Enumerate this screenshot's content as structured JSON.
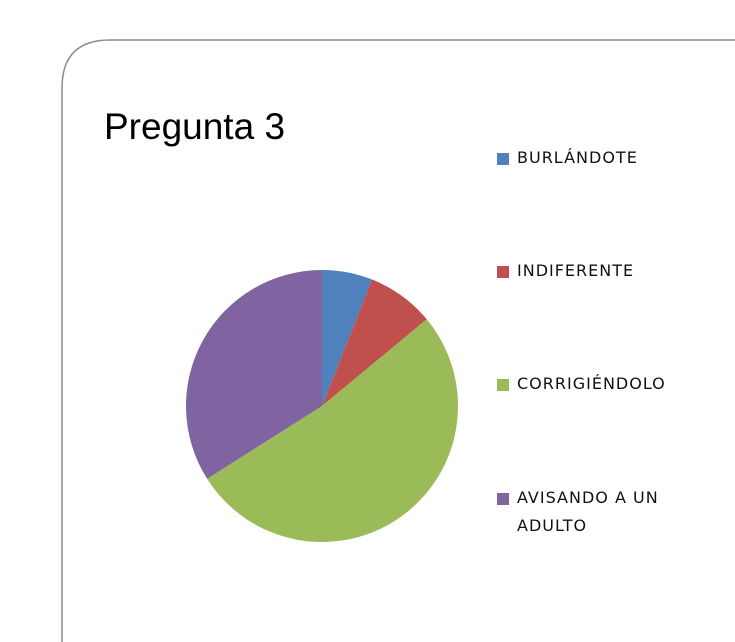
{
  "chart_data": {
    "type": "pie",
    "title": "Pregunta 3",
    "categories": [
      "BURLÁNDOTE",
      "INDIFERENTE",
      "CORRIGIÉNDOLO",
      "AVISANDO A UN ADULTO"
    ],
    "values": [
      6,
      8,
      52,
      34
    ],
    "colors": [
      "#4f81bd",
      "#c0504d",
      "#9bbb59",
      "#8064a2"
    ],
    "legend": "right"
  }
}
